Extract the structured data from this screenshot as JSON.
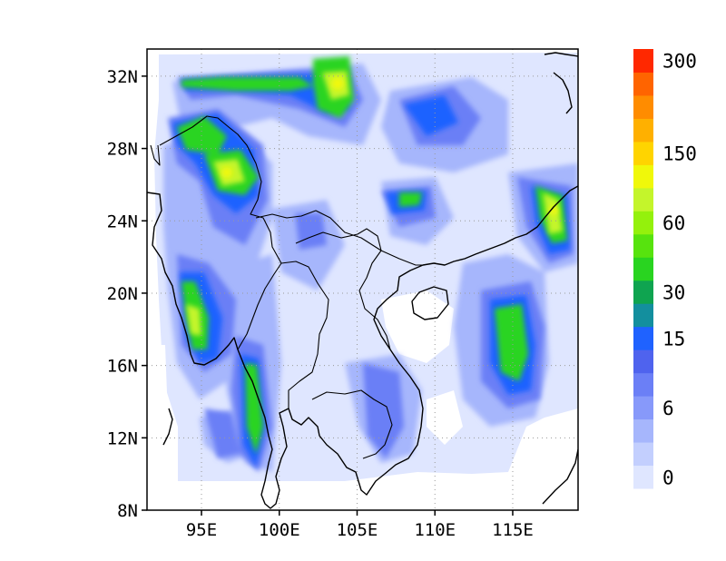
{
  "map": {
    "type": "filled-contour-map",
    "lon_range": [
      91.5,
      119.2
    ],
    "lat_range": [
      8,
      33.5
    ],
    "lon_ticks": [
      {
        "value": 95,
        "label": "95E"
      },
      {
        "value": 100,
        "label": "100E"
      },
      {
        "value": 105,
        "label": "105E"
      },
      {
        "value": 110,
        "label": "110E"
      },
      {
        "value": 115,
        "label": "115E"
      }
    ],
    "lat_ticks": [
      {
        "value": 8,
        "label": "8N"
      },
      {
        "value": 12,
        "label": "12N"
      },
      {
        "value": 16,
        "label": "16N"
      },
      {
        "value": 20,
        "label": "20N"
      },
      {
        "value": 24,
        "label": "24N"
      },
      {
        "value": 28,
        "label": "28N"
      },
      {
        "value": 32,
        "label": "32N"
      }
    ],
    "grid": "dotted"
  },
  "colorbar": {
    "colors": [
      "#dfe6ff",
      "#c3cffe",
      "#a6b6fc",
      "#8799fa",
      "#6b7ff6",
      "#4f63ee",
      "#1f62ff",
      "#138f9e",
      "#0fa450",
      "#29d420",
      "#57e30e",
      "#94f10c",
      "#c4f52b",
      "#f0f80a",
      "#ffd400",
      "#ffb000",
      "#ff8c00",
      "#ff6400",
      "#ff2800"
    ],
    "labels": [
      {
        "index": 0,
        "text": "0"
      },
      {
        "index": 3,
        "text": "6"
      },
      {
        "index": 6,
        "text": "15"
      },
      {
        "index": 8,
        "text": "30"
      },
      {
        "index": 11,
        "text": "60"
      },
      {
        "index": 14,
        "text": "150"
      },
      {
        "index": 18,
        "text": "300"
      }
    ]
  }
}
